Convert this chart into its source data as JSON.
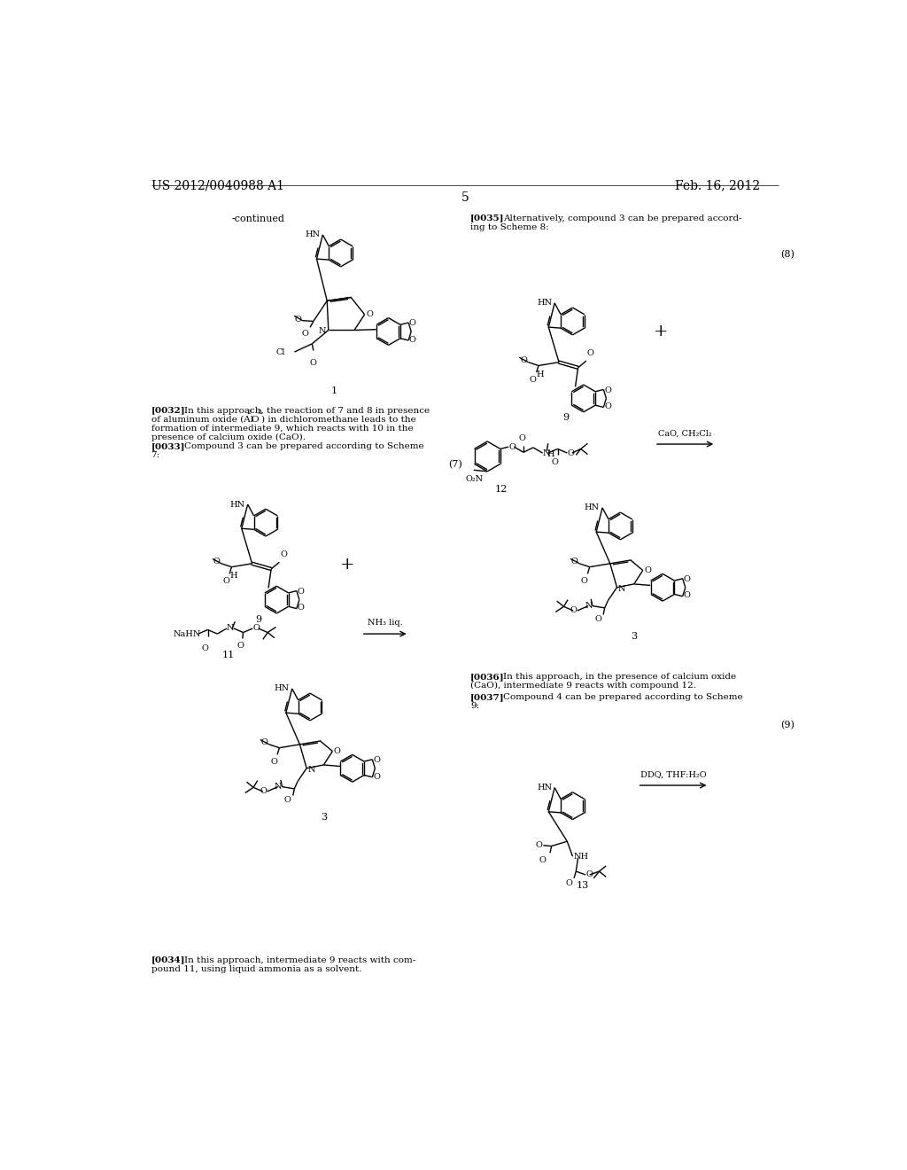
{
  "page_number": "5",
  "patent_number": "US 2012/0040988 A1",
  "patent_date": "Feb. 16, 2012",
  "background_color": "#ffffff"
}
